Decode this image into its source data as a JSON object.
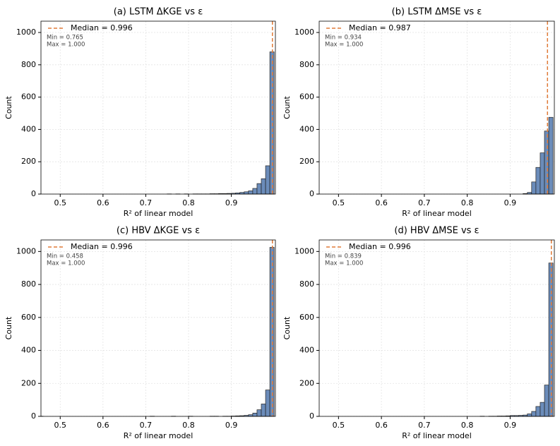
{
  "chart_data": [
    {
      "type": "histogram",
      "title": "(a) LSTM ΔKGE vs ε",
      "x_label": "R² of linear model",
      "y_label": "Count",
      "bins": [
        0.75,
        0.76,
        0.77,
        0.78,
        0.79,
        0.8,
        0.81,
        0.82,
        0.83,
        0.84,
        0.85,
        0.86,
        0.87,
        0.88,
        0.89,
        0.9,
        0.91,
        0.92,
        0.93,
        0.94,
        0.95,
        0.96,
        0.97,
        0.98,
        0.99,
        1.0
      ],
      "counts": [
        1,
        0,
        1,
        0,
        1,
        0,
        1,
        1,
        1,
        1,
        2,
        2,
        3,
        3,
        4,
        5,
        7,
        10,
        14,
        20,
        35,
        65,
        95,
        175,
        880
      ],
      "color": "#6b8cba",
      "median": 0.996,
      "median_label": "Median = 0.996",
      "median_color": "#e07b39",
      "stats": [
        "Min = 0.765",
        "Max = 1.000"
      ],
      "xlim": [
        0.455,
        1.003
      ],
      "xticks": [
        0.5,
        0.6,
        0.7,
        0.8,
        0.9
      ],
      "ylim": [
        0,
        1070
      ],
      "yticks": [
        0,
        200,
        400,
        600,
        800,
        1000
      ],
      "grid": true
    },
    {
      "type": "histogram",
      "title": "(b) LSTM ΔMSE vs ε",
      "x_label": "R² of linear model",
      "y_label": "Count",
      "bins": [
        0.93,
        0.94,
        0.95,
        0.96,
        0.97,
        0.98,
        0.99,
        1.0
      ],
      "counts": [
        3,
        10,
        75,
        165,
        255,
        390,
        475
      ],
      "color": "#6b8cba",
      "median": 0.987,
      "median_label": "Median = 0.987",
      "median_color": "#e07b39",
      "stats": [
        "Min = 0.934",
        "Max = 1.000"
      ],
      "xlim": [
        0.455,
        1.003
      ],
      "xticks": [
        0.5,
        0.6,
        0.7,
        0.8,
        0.9
      ],
      "ylim": [
        0,
        1070
      ],
      "yticks": [
        0,
        200,
        400,
        600,
        800,
        1000
      ],
      "grid": true
    },
    {
      "type": "histogram",
      "title": "(c) HBV ΔKGE vs ε",
      "x_label": "R² of linear model",
      "y_label": "Count",
      "bins": [
        0.45,
        0.46,
        0.47,
        0.48,
        0.49,
        0.5,
        0.51,
        0.52,
        0.53,
        0.54,
        0.55,
        0.56,
        0.57,
        0.58,
        0.59,
        0.6,
        0.61,
        0.62,
        0.63,
        0.64,
        0.65,
        0.66,
        0.67,
        0.68,
        0.69,
        0.7,
        0.71,
        0.72,
        0.73,
        0.74,
        0.75,
        0.76,
        0.77,
        0.78,
        0.79,
        0.8,
        0.81,
        0.82,
        0.83,
        0.84,
        0.85,
        0.86,
        0.87,
        0.88,
        0.89,
        0.9,
        0.91,
        0.92,
        0.93,
        0.94,
        0.95,
        0.96,
        0.97,
        0.98,
        0.99,
        1.0
      ],
      "counts": [
        1,
        0,
        0,
        0,
        0,
        0,
        0,
        0,
        0,
        0,
        0,
        0,
        0,
        0,
        0,
        0,
        0,
        0,
        0,
        0,
        0,
        0,
        0,
        0,
        0,
        0,
        1,
        0,
        0,
        0,
        0,
        1,
        0,
        0,
        0,
        1,
        0,
        0,
        0,
        0,
        1,
        1,
        0,
        1,
        1,
        2,
        3,
        4,
        6,
        10,
        20,
        40,
        75,
        160,
        1025
      ],
      "color": "#6b8cba",
      "median": 0.996,
      "median_label": "Median = 0.996",
      "median_color": "#e07b39",
      "stats": [
        "Min = 0.458",
        "Max = 1.000"
      ],
      "xlim": [
        0.455,
        1.003
      ],
      "xticks": [
        0.5,
        0.6,
        0.7,
        0.8,
        0.9
      ],
      "ylim": [
        0,
        1070
      ],
      "yticks": [
        0,
        200,
        400,
        600,
        800,
        1000
      ],
      "grid": true
    },
    {
      "type": "histogram",
      "title": "(d) HBV ΔMSE vs ε",
      "x_label": "R² of linear model",
      "y_label": "Count",
      "bins": [
        0.83,
        0.84,
        0.85,
        0.86,
        0.87,
        0.88,
        0.89,
        0.9,
        0.91,
        0.92,
        0.93,
        0.94,
        0.95,
        0.96,
        0.97,
        0.98,
        0.99,
        1.0
      ],
      "counts": [
        1,
        0,
        1,
        1,
        2,
        2,
        3,
        5,
        5,
        6,
        8,
        15,
        30,
        60,
        85,
        190,
        930
      ],
      "color": "#6b8cba",
      "median": 0.996,
      "median_label": "Median = 0.996",
      "median_color": "#e07b39",
      "stats": [
        "Min = 0.839",
        "Max = 1.000"
      ],
      "xlim": [
        0.455,
        1.003
      ],
      "xticks": [
        0.5,
        0.6,
        0.7,
        0.8,
        0.9
      ],
      "ylim": [
        0,
        1070
      ],
      "yticks": [
        0,
        200,
        400,
        600,
        800,
        1000
      ],
      "grid": true
    }
  ]
}
